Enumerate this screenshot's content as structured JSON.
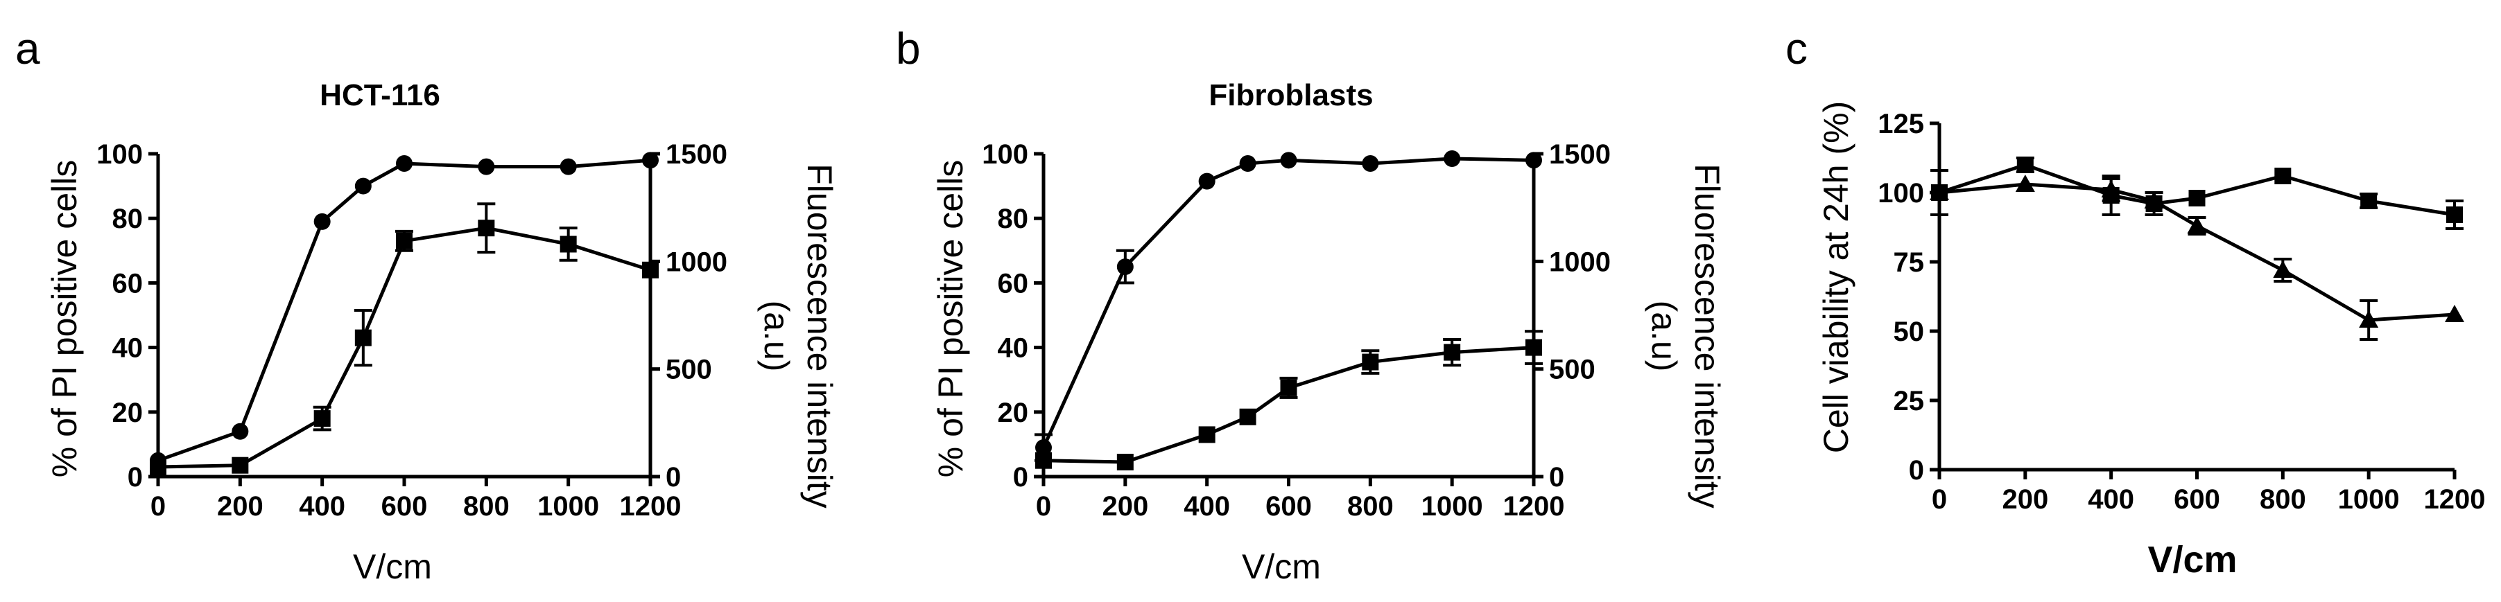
{
  "figure": {
    "panel_labels": [
      "a",
      "b",
      "c"
    ]
  },
  "chart_data": [
    {
      "panel": "a",
      "type": "line",
      "title": "HCT-116",
      "xlabel": "V/cm",
      "ylabel": "% of PI positive cells",
      "y2label": "Fluorescence intensity (a.u)",
      "xlim": [
        0,
        1200
      ],
      "ylim": [
        0,
        100
      ],
      "y2lim": [
        0,
        1500
      ],
      "xticks": [
        0,
        200,
        400,
        600,
        800,
        1000,
        1200
      ],
      "yticks": [
        0,
        20,
        40,
        60,
        80,
        100
      ],
      "y2ticks": [
        0,
        500,
        1000,
        1500
      ],
      "series": [
        {
          "marker": "circle",
          "axis": "left",
          "x": [
            0,
            200,
            400,
            500,
            600,
            800,
            1000,
            1200
          ],
          "y": [
            5,
            14,
            79,
            90,
            97,
            96,
            96,
            98
          ],
          "err": [
            0,
            0,
            0,
            0,
            0,
            0,
            0,
            0
          ]
        },
        {
          "marker": "square",
          "axis": "left",
          "x": [
            0,
            200,
            400,
            500,
            600,
            800,
            1000,
            1200
          ],
          "y": [
            3,
            3.5,
            18,
            43,
            73,
            77,
            72,
            64
          ],
          "err": [
            0,
            0,
            3.5,
            8.5,
            3,
            7.5,
            5,
            0
          ]
        }
      ]
    },
    {
      "panel": "b",
      "type": "line",
      "title": "Fibroblasts",
      "xlabel": "V/cm",
      "ylabel": "% of PI positive cells",
      "y2label": "Fluorescence intensity (a.u)",
      "xlim": [
        0,
        1200
      ],
      "ylim": [
        0,
        100
      ],
      "y2lim": [
        0,
        1500
      ],
      "xticks": [
        0,
        200,
        400,
        600,
        800,
        1000,
        1200
      ],
      "yticks": [
        0,
        20,
        40,
        60,
        80,
        100
      ],
      "y2ticks": [
        0,
        500,
        1000,
        1500
      ],
      "series": [
        {
          "marker": "circle",
          "axis": "left",
          "x": [
            0,
            200,
            400,
            500,
            600,
            800,
            1000,
            1200
          ],
          "y": [
            9,
            65,
            91.5,
            97,
            98,
            97,
            98.5,
            98
          ],
          "err": [
            4,
            5,
            0,
            0,
            0,
            0,
            0,
            0
          ]
        },
        {
          "marker": "square",
          "axis": "left",
          "x": [
            0,
            200,
            400,
            500,
            600,
            800,
            1000,
            1200
          ],
          "y": [
            5,
            4.5,
            13,
            18.5,
            27.5,
            35.5,
            38.5,
            40
          ],
          "err": [
            0,
            0,
            0,
            0,
            3,
            3.5,
            4,
            5
          ]
        }
      ]
    },
    {
      "panel": "c",
      "type": "line",
      "title": "",
      "xlabel": "V/cm",
      "ylabel": "Cell viability at 24h (%)",
      "xlim": [
        0,
        1200
      ],
      "ylim": [
        0,
        125
      ],
      "xticks": [
        0,
        200,
        400,
        600,
        800,
        1000,
        1200
      ],
      "yticks": [
        0,
        25,
        50,
        75,
        100,
        125
      ],
      "series": [
        {
          "marker": "square",
          "axis": "left",
          "x": [
            0,
            200,
            400,
            500,
            600,
            800,
            1000,
            1200
          ],
          "y": [
            100,
            110,
            99,
            96,
            98,
            106,
            97,
            92
          ],
          "err": [
            8,
            2.5,
            7,
            4,
            0,
            0,
            2.5,
            5
          ]
        },
        {
          "marker": "triangle",
          "axis": "left",
          "x": [
            0,
            200,
            400,
            500,
            600,
            800,
            1000,
            1200
          ],
          "y": [
            100,
            103,
            101,
            97,
            88,
            72,
            54,
            56
          ],
          "err": [
            0,
            0,
            4,
            0,
            3,
            4,
            7,
            0
          ]
        }
      ]
    }
  ]
}
